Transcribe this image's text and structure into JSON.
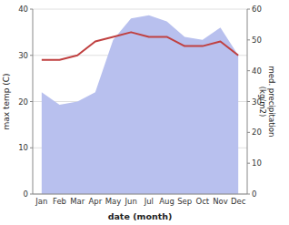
{
  "chart_data": {
    "type": "line",
    "categories": [
      "Jan",
      "Feb",
      "Mar",
      "Apr",
      "May",
      "Jun",
      "Jul",
      "Aug",
      "Sep",
      "Oct",
      "Nov",
      "Dec"
    ],
    "xlabel": "date (month)",
    "ylabel": "max temp (C)",
    "y2label": "med. precipitation\n(kg/m2)",
    "ylim": [
      0,
      40
    ],
    "yticks": [
      0,
      10,
      20,
      30,
      40
    ],
    "y2lim": [
      0,
      60
    ],
    "y2ticks": [
      0,
      10,
      20,
      30,
      40,
      50,
      60
    ],
    "grid": true,
    "series": [
      {
        "type": "area",
        "axis": "y2",
        "color": "#b8c0ee",
        "values": [
          33,
          29,
          30,
          33,
          50,
          57,
          58,
          56,
          51,
          50,
          54,
          45
        ]
      },
      {
        "type": "line",
        "color": "#c04040",
        "values": [
          29,
          29,
          30,
          33,
          34,
          35,
          34,
          34,
          32,
          32,
          33,
          30
        ]
      }
    ]
  }
}
